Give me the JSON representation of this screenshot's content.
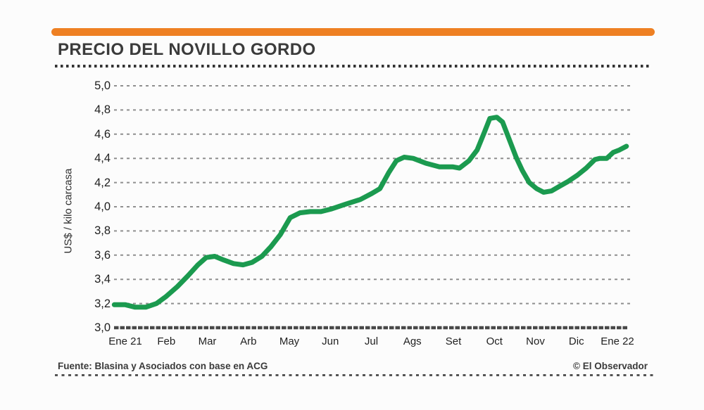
{
  "header": {
    "title": "PRECIO DEL NOVILLO GORDO",
    "accent_color": "#ee8023"
  },
  "chart_data": {
    "type": "line",
    "title": "PRECIO DEL NOVILLO GORDO",
    "ylabel": "US$ / kilo carcasa",
    "xlabel": "",
    "ylim": [
      3.0,
      5.0
    ],
    "ytick_step": 0.2,
    "ytick_labels_top_to_bottom": [
      "5,0",
      "4,8",
      "4,6",
      "4,4",
      "4,2",
      "4,0",
      "3,8",
      "3,6",
      "3,4",
      "3,2",
      "3,0"
    ],
    "x_categories": [
      "Ene 21",
      "Feb",
      "Mar",
      "Arb",
      "May",
      "Jun",
      "Jul",
      "Ags",
      "Set",
      "Oct",
      "Nov",
      "Dic",
      "Ene 22"
    ],
    "grid": "dashed-horizontal",
    "legend": "none",
    "line_color": "#1b9a4f",
    "baseline_color": "#484848",
    "gridline_color": "#8f8f8f",
    "monthly_values": {
      "Ene 21": 3.19,
      "Feb": 3.26,
      "Mar": 3.58,
      "Arb": 3.53,
      "May": 3.91,
      "Jun": 3.98,
      "Jul": 4.11,
      "Ags": 4.4,
      "Set": 4.33,
      "Oct": 4.74,
      "Nov": 4.14,
      "Dic": 4.26,
      "Ene 22": 4.47
    },
    "series": [
      {
        "name": "Precio del novillo gordo (US$/kilo carcasa)",
        "points": [
          [
            -0.27,
            3.19
          ],
          [
            0,
            3.19
          ],
          [
            0.24,
            3.17
          ],
          [
            0.5,
            3.17
          ],
          [
            0.76,
            3.2
          ],
          [
            1.0,
            3.26
          ],
          [
            1.27,
            3.34
          ],
          [
            1.53,
            3.43
          ],
          [
            1.77,
            3.52
          ],
          [
            1.97,
            3.58
          ],
          [
            2.18,
            3.59
          ],
          [
            2.4,
            3.56
          ],
          [
            2.64,
            3.53
          ],
          [
            2.87,
            3.52
          ],
          [
            3.09,
            3.54
          ],
          [
            3.33,
            3.59
          ],
          [
            3.55,
            3.67
          ],
          [
            3.78,
            3.77
          ],
          [
            4.02,
            3.91
          ],
          [
            4.26,
            3.95
          ],
          [
            4.51,
            3.96
          ],
          [
            4.77,
            3.96
          ],
          [
            5.01,
            3.98
          ],
          [
            5.36,
            4.02
          ],
          [
            5.73,
            4.06
          ],
          [
            6.01,
            4.11
          ],
          [
            6.21,
            4.15
          ],
          [
            6.42,
            4.28
          ],
          [
            6.61,
            4.38
          ],
          [
            6.8,
            4.41
          ],
          [
            7.02,
            4.4
          ],
          [
            7.33,
            4.36
          ],
          [
            7.66,
            4.33
          ],
          [
            7.98,
            4.33
          ],
          [
            8.15,
            4.32
          ],
          [
            8.38,
            4.38
          ],
          [
            8.58,
            4.47
          ],
          [
            8.76,
            4.62
          ],
          [
            8.89,
            4.73
          ],
          [
            9.06,
            4.74
          ],
          [
            9.2,
            4.7
          ],
          [
            9.37,
            4.55
          ],
          [
            9.53,
            4.41
          ],
          [
            9.68,
            4.3
          ],
          [
            9.85,
            4.2
          ],
          [
            10.03,
            4.15
          ],
          [
            10.2,
            4.12
          ],
          [
            10.39,
            4.13
          ],
          [
            10.59,
            4.17
          ],
          [
            10.8,
            4.21
          ],
          [
            11.02,
            4.26
          ],
          [
            11.24,
            4.32
          ],
          [
            11.45,
            4.39
          ],
          [
            11.57,
            4.4
          ],
          [
            11.74,
            4.4
          ],
          [
            11.9,
            4.45
          ],
          [
            12.05,
            4.47
          ],
          [
            12.22,
            4.5
          ]
        ]
      }
    ]
  },
  "footer": {
    "source": "Fuente: Blasina y Asociados con base en ACG",
    "credit": "© El Observador"
  }
}
